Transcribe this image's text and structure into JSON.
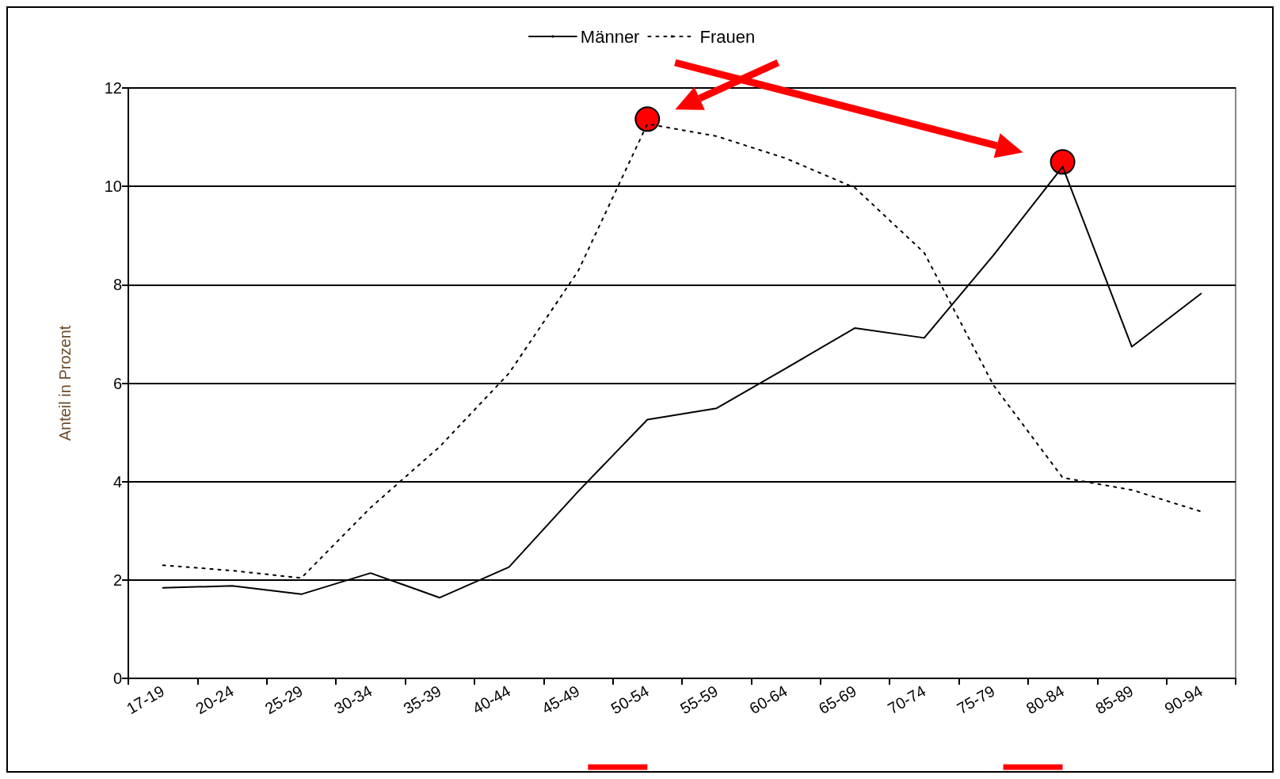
{
  "chart_data": {
    "type": "line",
    "ylabel": "Anteil in Prozent",
    "categories": [
      "17-19",
      "20-24",
      "25-29",
      "30-34",
      "35-39",
      "40-44",
      "45-49",
      "50-54",
      "55-59",
      "60-64",
      "65-69",
      "70-74",
      "75-79",
      "80-84",
      "85-89",
      "90-94"
    ],
    "series": [
      {
        "name": "Männer",
        "color": "#000000",
        "line_style": "solid",
        "values": [
          1.84,
          1.88,
          1.71,
          2.14,
          1.64,
          2.26,
          3.8,
          5.26,
          5.49,
          6.3,
          7.12,
          6.92,
          8.6,
          10.4,
          6.74,
          7.82
        ]
      },
      {
        "name": "Frauen",
        "color": "#000000",
        "line_style": "dotted",
        "values": [
          2.3,
          2.19,
          2.04,
          3.47,
          4.71,
          6.2,
          8.28,
          11.27,
          11.02,
          10.57,
          9.97,
          8.65,
          5.96,
          4.08,
          3.83,
          3.39
        ]
      }
    ],
    "ylim": [
      0,
      12
    ],
    "yticks": [
      0,
      2,
      4,
      6,
      8,
      10,
      12
    ],
    "grid": "y",
    "legend": "top",
    "marker": "none"
  }
}
